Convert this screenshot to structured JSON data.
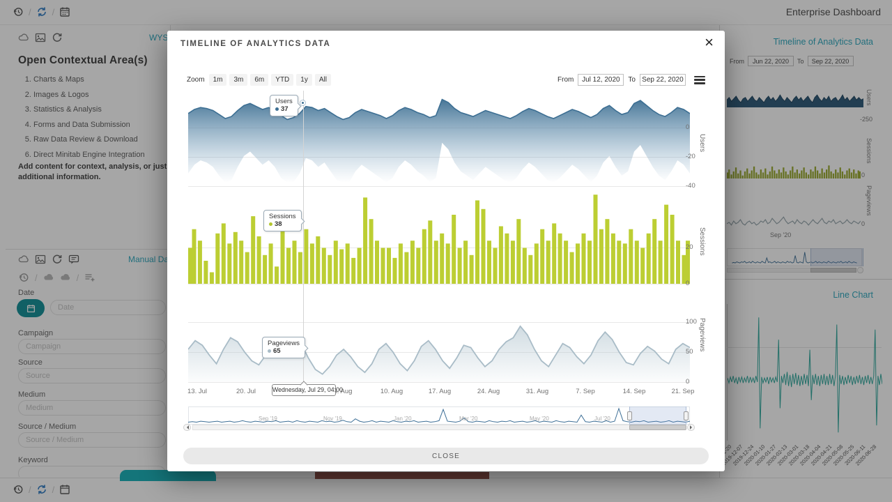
{
  "chrome": {
    "separator": "/"
  },
  "page": {
    "title": "Enterprise Dashboard"
  },
  "left": {
    "panel1": {
      "link": "WYS",
      "heading": "Open Contextual Area(s)",
      "items": [
        "Charts & Maps",
        "Images & Logos",
        "Statistics & Analysis",
        "Forms and Data Submission",
        "Raw Data Review & Download",
        "Direct Minitab Engine Integration"
      ],
      "note": "Add content for context, analysis, or just additional information."
    },
    "panel2": {
      "link": "Manual Da",
      "fields": {
        "date": {
          "label": "Date",
          "placeholder": "Date"
        },
        "campaign": {
          "label": "Campaign",
          "placeholder": "Campaign"
        },
        "source": {
          "label": "Source",
          "placeholder": "Source"
        },
        "medium": {
          "label": "Medium",
          "placeholder": "Medium"
        },
        "source_medium": {
          "label": "Source / Medium",
          "placeholder": "Source / Medium"
        },
        "keyword": {
          "label": "Keyword",
          "placeholder": ""
        }
      }
    }
  },
  "right": {
    "timeline_link": "Timeline of Analytics Data",
    "from_label": "From",
    "from_value": "Jun 22, 2020",
    "to_label": "To",
    "to_value": "Sep 22, 2020",
    "axis": {
      "users_title": "Users",
      "users_tick": "-250",
      "sessions_title": "Sessions",
      "sessions_tick": "0",
      "pageviews_title": "Pageviews",
      "pageviews_tick": "0",
      "month": "Sep '20"
    },
    "line_chart_link": "Line Chart",
    "date_labels": [
      "2019-11-20",
      "2019-12-07",
      "2019-12-24",
      "2020-01-10",
      "2020-01-27",
      "2020-02-13",
      "2020-03-01",
      "2020-03-18",
      "2020-04-04",
      "2020-04-21",
      "2020-05-08",
      "2020-05-25",
      "2020-06-11",
      "2020-06-28"
    ]
  },
  "modal": {
    "title": "TIMELINE OF ANALYTICS DATA",
    "close_x": "×",
    "zoom_label": "Zoom",
    "zoom_buttons": [
      "1m",
      "3m",
      "6m",
      "YTD",
      "1y",
      "All"
    ],
    "from_label": "From",
    "from_value": "Jul 12, 2020",
    "to_label": "To",
    "to_value": "Sep 22, 2020",
    "axis_titles": {
      "users": "Users",
      "sessions": "Sessions",
      "pageviews": "Pageviews"
    },
    "y_users": [
      "0",
      "-20",
      "-40"
    ],
    "y_sessions": [
      "20",
      "0"
    ],
    "y_pageviews": [
      "100",
      "50",
      "0"
    ],
    "x_labels": [
      "13. Jul",
      "20. Jul",
      "27. Jul",
      "3. Aug",
      "10. Aug",
      "17. Aug",
      "24. Aug",
      "31. Aug",
      "7. Sep",
      "14. Sep",
      "21. Sep"
    ],
    "tooltips": {
      "users": {
        "name": "Users",
        "value": "37"
      },
      "sessions": {
        "name": "Sessions",
        "value": "38"
      },
      "pageviews": {
        "name": "Pageviews",
        "value": "65"
      }
    },
    "date_tooltip": "Wednesday, Jul 29, 04:00",
    "navigator_labels": [
      "Sep '19",
      "Nov '19",
      "Jan '20",
      "Mar '20",
      "May '20",
      "Jul '20"
    ],
    "close_label": "CLOSE"
  },
  "colors": {
    "teal_link": "#2ba7bd",
    "users": "#3d6f93",
    "sessions": "#bcce33",
    "pageviews": "#a9bcc7",
    "navigator": "#3c6e96",
    "line_chart": "#2aa79b"
  },
  "chart_data": [
    {
      "id": "modal-users",
      "type": "band",
      "title": "Users",
      "color": "#3d6f93",
      "grad": "url(#g-users)",
      "max": 50,
      "topOff": 6,
      "topSpan": 72,
      "thick": 52,
      "lobe": 1.7,
      "values": [
        30,
        34,
        36,
        35,
        33,
        29,
        25,
        27,
        33,
        38,
        40,
        37,
        34,
        36,
        33,
        28,
        24,
        26,
        30,
        37,
        36,
        33,
        35,
        31,
        27,
        24,
        26,
        31,
        34,
        32,
        30,
        28,
        25,
        28,
        33,
        36,
        34,
        31,
        29,
        26,
        28,
        44,
        41,
        35,
        31,
        29,
        27,
        30,
        33,
        31,
        29,
        27,
        25,
        28,
        32,
        35,
        33,
        30,
        27,
        25,
        28,
        31,
        34,
        32,
        29,
        26,
        29,
        35,
        38,
        33,
        29,
        31,
        40,
        43,
        38,
        33,
        29,
        27,
        31,
        36,
        34,
        30
      ]
    },
    {
      "id": "modal-sessions",
      "type": "bar",
      "title": "Sessions",
      "color": "#bcce33",
      "min": 0,
      "max": 65,
      "values": [
        25,
        38,
        30,
        16,
        8,
        35,
        42,
        28,
        36,
        30,
        22,
        47,
        33,
        20,
        28,
        12,
        38,
        25,
        30,
        22,
        38,
        28,
        33,
        25,
        20,
        30,
        24,
        28,
        18,
        25,
        60,
        45,
        30,
        25,
        25,
        18,
        28,
        22,
        30,
        25,
        38,
        44,
        30,
        35,
        28,
        48,
        25,
        30,
        20,
        58,
        52,
        30,
        25,
        40,
        35,
        30,
        45,
        25,
        20,
        28,
        38,
        30,
        42,
        35,
        30,
        22,
        28,
        35,
        30,
        62,
        38,
        45,
        35,
        30,
        28,
        38,
        30,
        25,
        35,
        45,
        30,
        55,
        48,
        30,
        20,
        30
      ]
    },
    {
      "id": "modal-pageviews",
      "type": "area",
      "title": "Pageviews",
      "color": "#a9bcc7",
      "lw": 1.8,
      "fill": "url(#g-pv)",
      "min": 0,
      "max": 145,
      "values": [
        55,
        70,
        62,
        45,
        30,
        55,
        75,
        68,
        50,
        35,
        28,
        45,
        60,
        72,
        66,
        58,
        65,
        40,
        20,
        12,
        25,
        45,
        55,
        42,
        25,
        15,
        30,
        55,
        65,
        50,
        30,
        18,
        35,
        60,
        70,
        55,
        35,
        22,
        40,
        62,
        58,
        40,
        25,
        35,
        55,
        68,
        75,
        95,
        80,
        55,
        35,
        25,
        45,
        65,
        58,
        42,
        30,
        45,
        70,
        85,
        72,
        50,
        32,
        28,
        48,
        60,
        52,
        38,
        30,
        55,
        65,
        58
      ]
    },
    {
      "id": "modal-navigator",
      "type": "line",
      "title": "Navigator",
      "color": "#3c6e96",
      "lw": 1,
      "min": 0,
      "max": 34,
      "values": [
        3,
        4,
        3,
        5,
        4,
        3,
        4,
        5,
        3,
        4,
        5,
        3,
        4,
        6,
        4,
        3,
        5,
        4,
        3,
        5,
        4,
        6,
        3,
        4,
        5,
        3,
        6,
        4,
        3,
        5,
        4,
        3,
        6,
        4,
        5,
        3,
        4,
        7,
        4,
        3,
        10,
        5,
        3,
        4,
        6,
        3,
        5,
        4,
        3,
        6,
        4,
        3,
        5,
        4,
        6,
        3,
        4,
        5,
        3,
        4,
        6,
        30,
        5,
        4,
        3,
        5,
        12,
        4,
        3,
        5,
        4,
        3,
        6,
        4,
        3,
        5,
        4,
        6,
        3,
        4,
        5,
        3,
        4,
        6,
        3,
        5,
        4,
        3,
        6,
        4,
        3,
        5,
        4,
        3,
        18,
        4,
        3,
        5,
        4,
        3,
        6,
        3,
        5,
        32,
        6,
        4,
        3,
        5,
        4,
        6,
        3,
        4,
        5,
        3,
        4,
        6,
        3,
        5,
        4,
        3,
        5
      ]
    },
    {
      "id": "bg-users",
      "type": "area",
      "title": "Users (mini)",
      "color": "#1d4460",
      "fill": "#2a5878",
      "min": 0,
      "max": 16,
      "values": [
        5,
        7,
        4,
        6,
        8,
        5,
        3,
        6,
        7,
        4,
        6,
        8,
        5,
        4,
        7,
        5,
        3,
        6,
        8,
        5,
        7,
        4,
        6,
        9,
        6,
        4,
        7,
        5,
        3,
        6,
        8,
        5,
        7,
        4,
        6,
        8,
        5,
        3,
        7,
        9,
        6,
        4,
        7,
        5,
        8,
        4,
        6,
        7,
        4,
        6,
        9,
        5,
        7,
        4,
        6,
        8,
        5,
        7,
        5,
        6
      ]
    },
    {
      "id": "bg-sessions",
      "type": "bar",
      "title": "Sessions (mini)",
      "color": "#9aaa2e",
      "min": 0,
      "max": 16,
      "values": [
        6,
        9,
        4,
        7,
        11,
        5,
        8,
        3,
        7,
        10,
        5,
        8,
        12,
        6,
        4,
        9,
        6,
        10,
        4,
        7,
        12,
        8,
        5,
        9,
        6,
        11,
        7,
        4,
        8,
        12,
        6,
        9,
        5,
        8,
        11,
        6,
        4,
        9,
        7,
        12,
        8,
        5,
        10,
        6,
        9,
        13,
        7,
        5,
        9,
        6,
        11,
        7,
        4,
        8,
        10,
        6,
        9,
        5,
        8,
        7
      ]
    },
    {
      "id": "bg-pageviews",
      "type": "line",
      "title": "Pageviews (mini)",
      "color": "#97a6ad",
      "lw": 1.2,
      "min": 0,
      "max": 12,
      "values": [
        4,
        5,
        3,
        6,
        4,
        5,
        7,
        4,
        3,
        5,
        6,
        4,
        5,
        3,
        4,
        6,
        5,
        7,
        4,
        5,
        8,
        6,
        4,
        5,
        7,
        9,
        6,
        4,
        5,
        6,
        4,
        7,
        5,
        4,
        6,
        5,
        3,
        5,
        7,
        5,
        4,
        6,
        8,
        5,
        4,
        6,
        5,
        7,
        4,
        5,
        6,
        4,
        5,
        7,
        5,
        4,
        6,
        5,
        4,
        6
      ]
    },
    {
      "id": "bg-navigator",
      "type": "line",
      "title": "Navigator (mini)",
      "color": "#3c6e96",
      "lw": 1,
      "min": 0,
      "max": 26,
      "values": [
        3,
        4,
        3,
        5,
        4,
        3,
        5,
        4,
        6,
        3,
        4,
        5,
        3,
        6,
        4,
        3,
        5,
        4,
        3,
        6,
        4,
        3,
        12,
        4,
        5,
        3,
        4,
        6,
        3,
        5,
        4,
        3,
        5,
        4,
        3,
        6,
        4,
        5,
        3,
        4,
        16,
        4,
        3,
        5,
        4,
        3,
        22,
        5,
        3,
        4,
        5,
        3,
        4,
        6,
        3,
        5,
        4,
        3,
        5,
        4,
        3,
        6,
        4,
        3,
        5,
        4,
        3,
        5,
        4,
        6,
        3,
        4,
        5,
        3,
        6,
        4,
        3,
        5,
        4,
        3
      ]
    },
    {
      "id": "bg-linechart",
      "type": "center",
      "title": "Line Chart",
      "color": "#2aa79b",
      "lw": 1,
      "amp": 65,
      "values": [
        2,
        -3,
        3,
        -2,
        4,
        -3,
        2,
        -4,
        3,
        -2,
        3,
        -3,
        2,
        -2,
        4,
        -3,
        3,
        -2,
        2,
        -3,
        4,
        -2,
        62,
        -48,
        3,
        -3,
        2,
        -2,
        3,
        -4,
        3,
        -2,
        2,
        -3,
        3,
        -2,
        40,
        -28,
        4,
        -3,
        6,
        -5,
        8,
        -6,
        5,
        -7,
        6,
        -4,
        7,
        -5,
        5,
        -6,
        4,
        -5,
        6,
        -4,
        5,
        -6,
        30,
        -20,
        5,
        -4,
        6,
        -5,
        4,
        -6,
        5,
        -4,
        6,
        -5,
        4,
        -5,
        6,
        -4,
        5,
        -6,
        4,
        55,
        -52,
        5,
        -4,
        4,
        -5,
        3,
        -4,
        5,
        -3,
        4,
        -5,
        3,
        -4,
        4,
        -3,
        5,
        -4,
        3,
        -5,
        4,
        -3,
        5,
        -4,
        3,
        -4,
        4,
        50,
        -45,
        4,
        -5,
        6,
        -4
      ]
    }
  ]
}
